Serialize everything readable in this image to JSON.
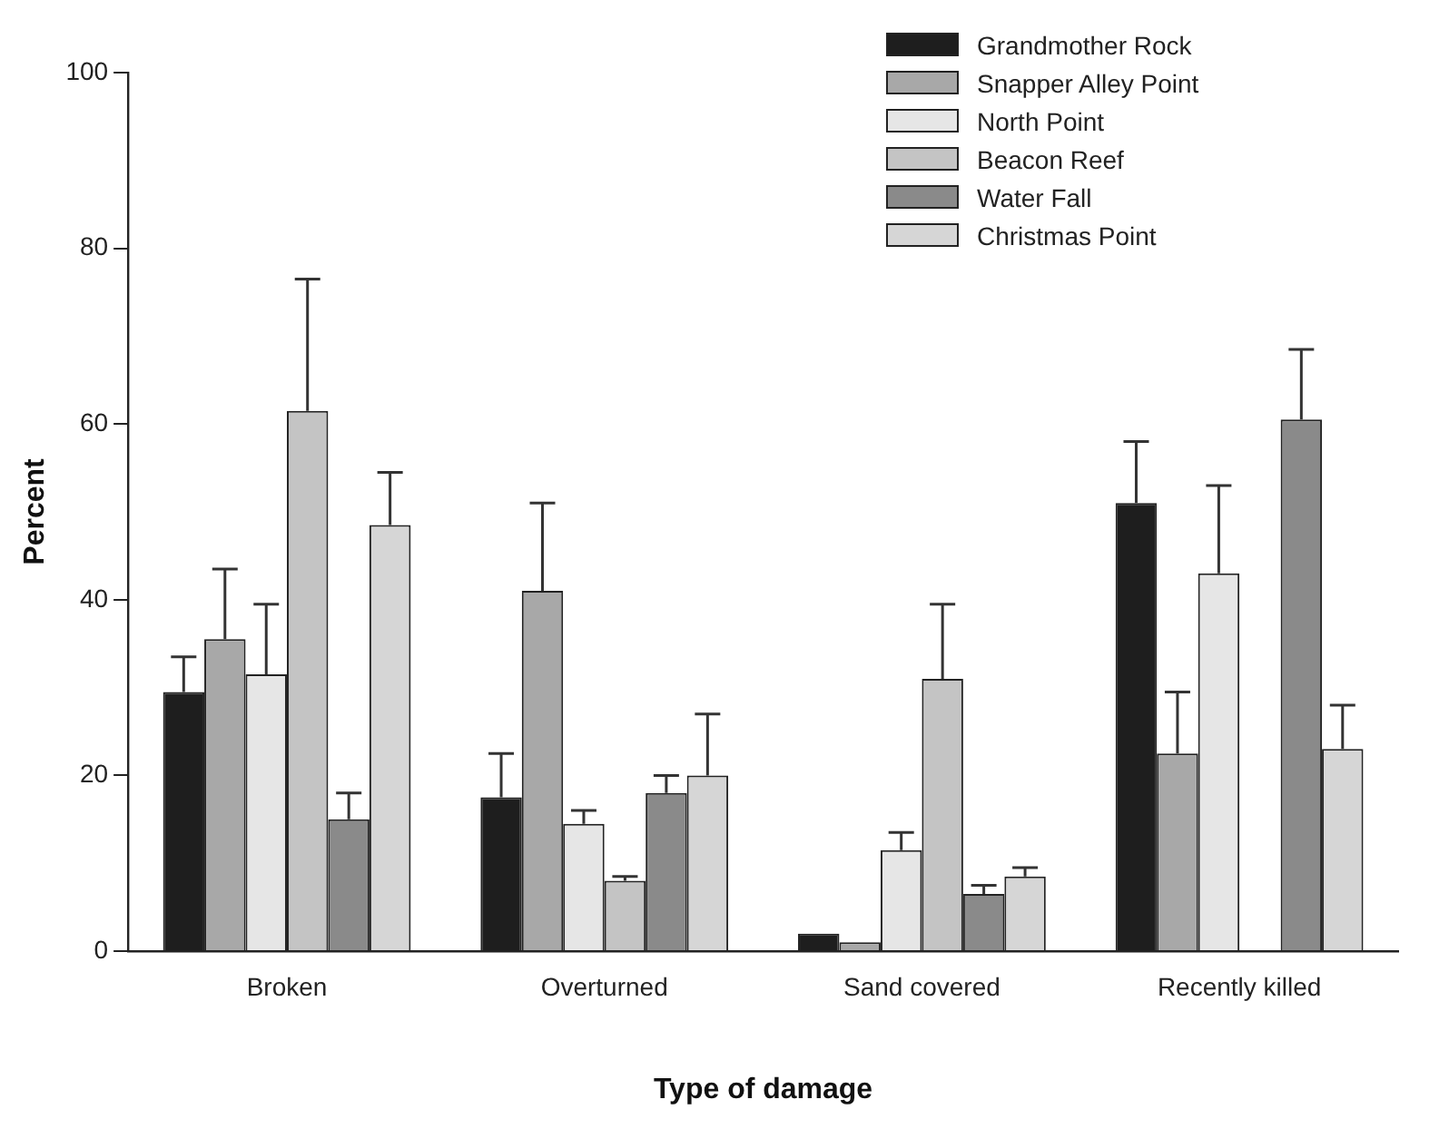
{
  "chart_data": {
    "type": "bar",
    "xlabel": "Type of damage",
    "ylabel": "Percent",
    "categories": [
      "Broken",
      "Overturned",
      "Sand covered",
      "Recently killed"
    ],
    "series": [
      {
        "name": "Grandmother Rock",
        "color": "#1e1e1e",
        "values": [
          29.5,
          17.5,
          2,
          51
        ],
        "errors": [
          4,
          5,
          null,
          7
        ]
      },
      {
        "name": "Snapper Alley Point",
        "color": "#a8a8a8",
        "values": [
          35.5,
          41,
          1,
          22.5
        ],
        "errors": [
          8,
          10,
          null,
          7
        ]
      },
      {
        "name": "North Point",
        "color": "#e6e6e6",
        "values": [
          31.5,
          14.5,
          11.5,
          43
        ],
        "errors": [
          8,
          1.5,
          2,
          10
        ]
      },
      {
        "name": "Beacon Reef",
        "color": "#c4c4c4",
        "values": [
          61.5,
          8,
          31,
          0
        ],
        "errors": [
          15,
          0.5,
          8.5,
          null
        ]
      },
      {
        "name": "Water Fall",
        "color": "#8a8a8a",
        "values": [
          15,
          18,
          6.5,
          60.5
        ],
        "errors": [
          3,
          2,
          1,
          8
        ]
      },
      {
        "name": "Christmas Point",
        "color": "#d6d6d6",
        "values": [
          48.5,
          20,
          8.5,
          23
        ],
        "errors": [
          6,
          7,
          1,
          5
        ]
      }
    ],
    "ylim": [
      0,
      100
    ],
    "yticks": [
      0,
      20,
      40,
      60,
      80,
      100
    ],
    "grid": false,
    "legend": "top right"
  }
}
